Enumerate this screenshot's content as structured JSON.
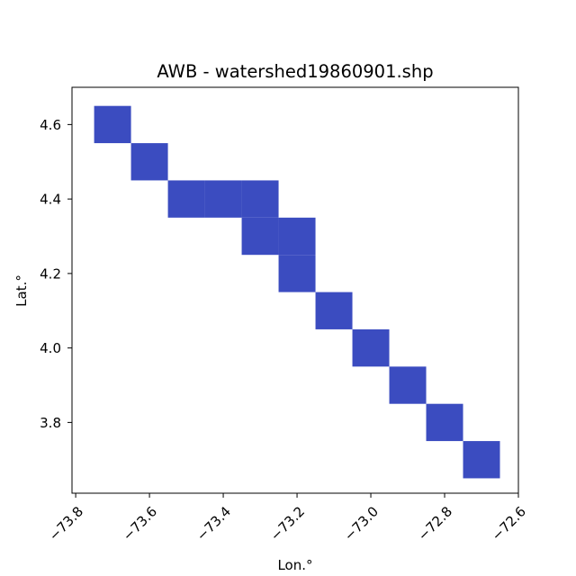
{
  "chart_data": {
    "type": "heatmap",
    "title": "AWB - watershed19860901.shp",
    "xlabel": "Lon.°",
    "ylabel": "Lat.°",
    "xlim": [
      -73.81,
      -72.6
    ],
    "ylim": [
      3.61,
      4.7
    ],
    "xticks": [
      -73.8,
      -73.6,
      -73.4,
      -73.2,
      -73.0,
      -72.8,
      -72.6
    ],
    "xtick_labels": [
      "−73.8",
      "−73.6",
      "−73.4",
      "−73.2",
      "−73.0",
      "−72.8",
      "−72.6"
    ],
    "yticks": [
      3.8,
      4.0,
      4.2,
      4.4,
      4.6
    ],
    "ytick_labels": [
      "3.8",
      "4.0",
      "4.2",
      "4.4",
      "4.6"
    ],
    "cell_size": 0.1,
    "cell_color": "#3b4cc0",
    "cells": [
      {
        "lon": -73.7,
        "lat": 4.6
      },
      {
        "lon": -73.6,
        "lat": 4.5
      },
      {
        "lon": -73.5,
        "lat": 4.4
      },
      {
        "lon": -73.4,
        "lat": 4.4
      },
      {
        "lon": -73.3,
        "lat": 4.4
      },
      {
        "lon": -73.3,
        "lat": 4.3
      },
      {
        "lon": -73.2,
        "lat": 4.3
      },
      {
        "lon": -73.2,
        "lat": 4.2
      },
      {
        "lon": -73.1,
        "lat": 4.1
      },
      {
        "lon": -73.0,
        "lat": 4.0
      },
      {
        "lon": -72.9,
        "lat": 3.9
      },
      {
        "lon": -72.8,
        "lat": 3.8
      },
      {
        "lon": -72.7,
        "lat": 3.7
      }
    ]
  }
}
